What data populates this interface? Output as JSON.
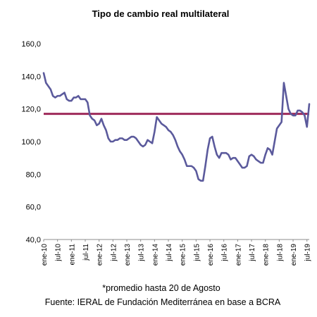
{
  "chart_data": {
    "type": "line",
    "title": "Tipo de cambio real multilateral",
    "ylim": [
      40,
      160
    ],
    "y_ticks": [
      "40,0",
      "60,0",
      "80,0",
      "100,0",
      "120,0",
      "140,0",
      "160,0"
    ],
    "x_tick_labels": [
      "ene-10",
      "jul-10",
      "ene-11",
      "jul-11",
      "ene-12",
      "jul-12",
      "ene-13",
      "jul-13",
      "ene-14",
      "jul-14",
      "ene-15",
      "jul-15",
      "ene-16",
      "jul-16",
      "ene-17",
      "jul-17",
      "ene-18",
      "jul-18",
      "ene-19",
      "jul-19"
    ],
    "x_start": "2010-01",
    "x_end": "2019-08",
    "reference_value": 117,
    "grid": false,
    "legend": "none",
    "colors": {
      "series": "#5b5a9c",
      "reference": "#9e2a5a",
      "axis": "#8c8c8c"
    },
    "series": [
      {
        "x": [
          "2010-01",
          "2010-02",
          "2010-03",
          "2010-04",
          "2010-05",
          "2010-06",
          "2010-07",
          "2010-08",
          "2010-09",
          "2010-10",
          "2010-11",
          "2010-12",
          "2011-01",
          "2011-02",
          "2011-03",
          "2011-04",
          "2011-05",
          "2011-06",
          "2011-07",
          "2011-08",
          "2011-09",
          "2011-10",
          "2011-11",
          "2011-12",
          "2012-01",
          "2012-02",
          "2012-03",
          "2012-04",
          "2012-05",
          "2012-06",
          "2012-07",
          "2012-08",
          "2012-09",
          "2012-10",
          "2012-11",
          "2012-12",
          "2013-01",
          "2013-02",
          "2013-03",
          "2013-04",
          "2013-05",
          "2013-06",
          "2013-07",
          "2013-08",
          "2013-09",
          "2013-10",
          "2013-11",
          "2013-12",
          "2014-01",
          "2014-02",
          "2014-03",
          "2014-04",
          "2014-05",
          "2014-06",
          "2014-07",
          "2014-08",
          "2014-09",
          "2014-10",
          "2014-11",
          "2014-12",
          "2015-01",
          "2015-02",
          "2015-03",
          "2015-04",
          "2015-05",
          "2015-06",
          "2015-07",
          "2015-08",
          "2015-09",
          "2015-10",
          "2015-11",
          "2015-12",
          "2016-01",
          "2016-02",
          "2016-03",
          "2016-04",
          "2016-05",
          "2016-06",
          "2016-07",
          "2016-08",
          "2016-09",
          "2016-10",
          "2016-11",
          "2016-12",
          "2017-01",
          "2017-02",
          "2017-03",
          "2017-04",
          "2017-05",
          "2017-06",
          "2017-07",
          "2017-08",
          "2017-09",
          "2017-10",
          "2017-11",
          "2017-12",
          "2018-01",
          "2018-02",
          "2018-03",
          "2018-04",
          "2018-05",
          "2018-06",
          "2018-07",
          "2018-08",
          "2018-09",
          "2018-10",
          "2018-11",
          "2018-12",
          "2019-01",
          "2019-02",
          "2019-03",
          "2019-04",
          "2019-05",
          "2019-06",
          "2019-07",
          "2019-08"
        ],
        "values": [
          142,
          136,
          134,
          132,
          128,
          127,
          128,
          128,
          129,
          130,
          126,
          125,
          125,
          127,
          127,
          128,
          126,
          126,
          126,
          124,
          116,
          114,
          113,
          110,
          111,
          114,
          110,
          107,
          102,
          100,
          100,
          101,
          101,
          102,
          102,
          101,
          101,
          102,
          103,
          103,
          102,
          100,
          98,
          97,
          98,
          101,
          100,
          99,
          106,
          115,
          113,
          111,
          110,
          109,
          107,
          106,
          104,
          101,
          97,
          94,
          92,
          89,
          85,
          85,
          85,
          84,
          82,
          77,
          76,
          76,
          85,
          95,
          102,
          103,
          97,
          92,
          90,
          93,
          93,
          93,
          92,
          89,
          90,
          90,
          88,
          86,
          84,
          84,
          85,
          91,
          92,
          91,
          89,
          88,
          87,
          87,
          92,
          96,
          95,
          92,
          100,
          108,
          110,
          112,
          136,
          128,
          120,
          117,
          116,
          116,
          119,
          119,
          118,
          116,
          109,
          123
        ]
      }
    ]
  },
  "footnotes": {
    "note": "*promedio hasta 20 de Agosto",
    "source": "Fuente: IERAL de Fundación Mediterránea en base a BCRA"
  }
}
